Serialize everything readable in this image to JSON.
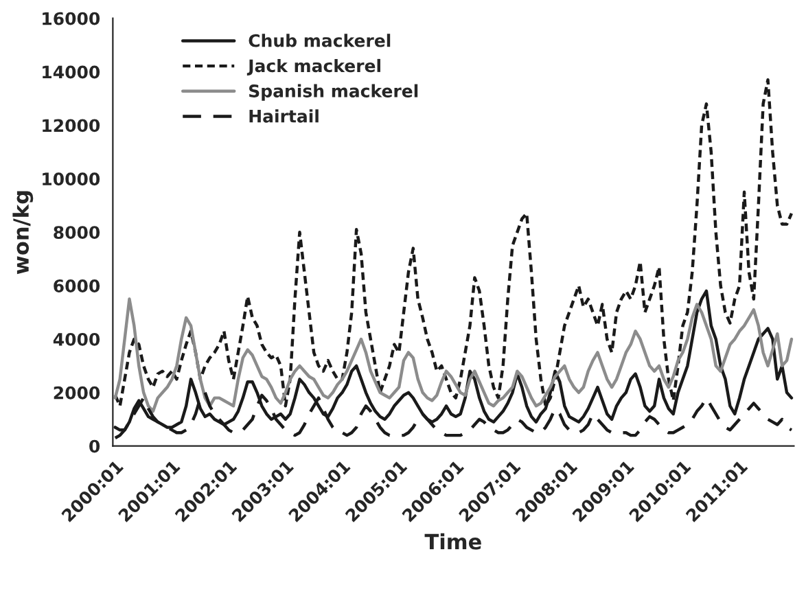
{
  "chart_data": {
    "type": "line",
    "xlabel": "Time",
    "ylabel": "won/kg",
    "ylim": [
      0,
      16000
    ],
    "yticks": [
      0,
      2000,
      4000,
      6000,
      8000,
      10000,
      12000,
      14000,
      16000
    ],
    "grid": false,
    "legend": "top left",
    "marker": "none",
    "categories": [
      "2000:01",
      null,
      null,
      null,
      null,
      null,
      null,
      null,
      null,
      null,
      null,
      null,
      "2001:01",
      null,
      null,
      null,
      null,
      null,
      null,
      null,
      null,
      null,
      null,
      null,
      "2002:01",
      null,
      null,
      null,
      null,
      null,
      null,
      null,
      null,
      null,
      null,
      null,
      "2003:01",
      null,
      null,
      null,
      null,
      null,
      null,
      null,
      null,
      null,
      null,
      null,
      "2004:01",
      null,
      null,
      null,
      null,
      null,
      null,
      null,
      null,
      null,
      null,
      null,
      "2005:01",
      null,
      null,
      null,
      null,
      null,
      null,
      null,
      null,
      null,
      null,
      null,
      "2006:01",
      null,
      null,
      null,
      null,
      null,
      null,
      null,
      null,
      null,
      null,
      null,
      "2007:01",
      null,
      null,
      null,
      null,
      null,
      null,
      null,
      null,
      null,
      null,
      null,
      "2008:01",
      null,
      null,
      null,
      null,
      null,
      null,
      null,
      null,
      null,
      null,
      null,
      "2009:01",
      null,
      null,
      null,
      null,
      null,
      null,
      null,
      null,
      null,
      null,
      null,
      "2010:01",
      null,
      null,
      null,
      null,
      null,
      null,
      null,
      null,
      null,
      null,
      null,
      "2011:01",
      null,
      null,
      null,
      null,
      null,
      null,
      null,
      null,
      null,
      null,
      null
    ],
    "series": [
      {
        "name": "Chub mackerel",
        "color": "#1a1a1a",
        "line_style": "solid",
        "values": [
          700,
          600,
          600,
          900,
          1400,
          1700,
          1400,
          1100,
          1000,
          900,
          800,
          700,
          700,
          800,
          900,
          1500,
          2500,
          2000,
          1400,
          1100,
          1200,
          1000,
          900,
          800,
          900,
          1000,
          1300,
          1800,
          2400,
          2400,
          2000,
          1500,
          1200,
          1000,
          1100,
          1200,
          1000,
          1200,
          1800,
          2500,
          2300,
          2000,
          1800,
          1500,
          1200,
          1100,
          1400,
          1800,
          2000,
          2300,
          2800,
          3000,
          2500,
          2000,
          1600,
          1300,
          1100,
          1000,
          1200,
          1500,
          1700,
          1900,
          2000,
          1800,
          1500,
          1200,
          1000,
          900,
          1000,
          1200,
          1500,
          1200,
          1100,
          1200,
          1800,
          2800,
          2500,
          1800,
          1300,
          1000,
          900,
          1100,
          1300,
          1600,
          2000,
          2700,
          2200,
          1500,
          1100,
          900,
          1200,
          1400,
          2000,
          2800,
          2400,
          1500,
          1100,
          1000,
          900,
          1100,
          1400,
          1800,
          2200,
          1700,
          1200,
          1000,
          1500,
          1800,
          2000,
          2500,
          2700,
          2200,
          1500,
          1300,
          1500,
          2500,
          1800,
          1400,
          1200,
          2000,
          2500,
          3000,
          4000,
          5000,
          5500,
          5800,
          4500,
          4000,
          3000,
          2500,
          1500,
          1200,
          1800,
          2500,
          3000,
          3500,
          4000,
          4200,
          4400,
          4000,
          2500,
          3000,
          2000,
          1800
        ]
      },
      {
        "name": "Jack mackerel",
        "color": "#1a1a1a",
        "line_style": "dotted",
        "values": [
          1900,
          1500,
          2500,
          3500,
          4000,
          3800,
          3000,
          2500,
          2200,
          2700,
          2800,
          2600,
          2800,
          2500,
          3200,
          3800,
          4300,
          3500,
          2500,
          3000,
          3300,
          3500,
          3800,
          4300,
          3200,
          2500,
          3500,
          4500,
          5600,
          4800,
          4500,
          3800,
          3500,
          3300,
          3400,
          3000,
          1500,
          2500,
          5500,
          8000,
          6500,
          5000,
          3500,
          3000,
          2800,
          3200,
          2800,
          2500,
          2500,
          3500,
          5000,
          8100,
          7200,
          5000,
          4000,
          3000,
          2000,
          2500,
          3000,
          3800,
          3500,
          5000,
          6500,
          7400,
          5500,
          4800,
          4000,
          3500,
          2800,
          3000,
          2500,
          2000,
          1800,
          2500,
          3500,
          4500,
          6300,
          5800,
          4500,
          3000,
          2200,
          1800,
          3000,
          5500,
          7500,
          8000,
          8500,
          8700,
          6500,
          4000,
          2500,
          1500,
          1800,
          2500,
          3500,
          4500,
          5000,
          5500,
          6000,
          5200,
          5500,
          5000,
          4500,
          5300,
          4000,
          3500,
          5000,
          5500,
          5800,
          5500,
          6000,
          6900,
          5000,
          5500,
          6000,
          6700,
          4000,
          2500,
          1700,
          3000,
          4500,
          5000,
          6500,
          9000,
          12000,
          12800,
          11000,
          8000,
          6000,
          5000,
          4600,
          5500,
          6000,
          9500,
          6500,
          5500,
          9000,
          12800,
          13700,
          11000,
          9000,
          8300,
          8300,
          8700
        ]
      },
      {
        "name": "Spanish mackerel",
        "color": "#8c8c8c",
        "line_style": "solid",
        "values": [
          1800,
          2500,
          4000,
          5500,
          4500,
          3000,
          2000,
          1500,
          1300,
          1800,
          2000,
          2200,
          2500,
          3000,
          4000,
          4800,
          4500,
          3500,
          2500,
          1800,
          1500,
          1800,
          1800,
          1700,
          1600,
          1500,
          2500,
          3300,
          3600,
          3400,
          3000,
          2600,
          2500,
          2200,
          1800,
          1600,
          2000,
          2500,
          2800,
          3000,
          2800,
          2600,
          2500,
          2200,
          1900,
          1800,
          2000,
          2300,
          2500,
          2800,
          3200,
          3600,
          4000,
          3500,
          2800,
          2400,
          2000,
          1900,
          1800,
          2000,
          2200,
          3200,
          3500,
          3300,
          2500,
          2000,
          1800,
          1700,
          1900,
          2400,
          2800,
          2600,
          2300,
          2000,
          1900,
          2500,
          2800,
          2400,
          2000,
          1600,
          1500,
          1700,
          1800,
          2000,
          2200,
          2800,
          2600,
          2200,
          1800,
          1500,
          1600,
          1900,
          2200,
          2600,
          2800,
          3000,
          2500,
          2200,
          2000,
          2200,
          2800,
          3200,
          3500,
          3000,
          2500,
          2200,
          2500,
          3000,
          3500,
          3800,
          4300,
          4000,
          3500,
          3000,
          2800,
          3000,
          2500,
          2200,
          2600,
          3200,
          3500,
          4000,
          4800,
          5300,
          5000,
          4500,
          4000,
          3000,
          2800,
          3300,
          3800,
          4000,
          4300,
          4500,
          4800,
          5100,
          4500,
          3500,
          3000,
          3600,
          4200,
          3000,
          3200,
          4000
        ]
      },
      {
        "name": "Hairtail",
        "color": "#1a1a1a",
        "line_style": "dashed",
        "values": [
          300,
          400,
          600,
          900,
          1200,
          1500,
          1800,
          1400,
          1100,
          900,
          800,
          700,
          600,
          500,
          500,
          600,
          800,
          1200,
          1800,
          2000,
          1500,
          1200,
          1000,
          800,
          600,
          500,
          500,
          600,
          800,
          1000,
          1500,
          1900,
          1700,
          1400,
          1000,
          800,
          600,
          500,
          400,
          500,
          800,
          1200,
          1500,
          1800,
          1400,
          1000,
          700,
          500,
          500,
          400,
          500,
          700,
          1200,
          1500,
          1300,
          1000,
          700,
          500,
          400,
          400,
          400,
          400,
          500,
          700,
          1000,
          1200,
          1000,
          800,
          600,
          500,
          400,
          400,
          400,
          400,
          500,
          600,
          800,
          1000,
          900,
          700,
          600,
          500,
          500,
          600,
          800,
          1000,
          900,
          700,
          600,
          500,
          500,
          700,
          1000,
          1400,
          1200,
          800,
          600,
          500,
          500,
          600,
          800,
          1200,
          1000,
          800,
          600,
          500,
          500,
          500,
          500,
          400,
          400,
          600,
          900,
          1100,
          1000,
          800,
          600,
          500,
          500,
          600,
          700,
          800,
          1000,
          1300,
          1500,
          1800,
          1500,
          1200,
          900,
          700,
          600,
          800,
          1000,
          1200,
          1400,
          1600,
          1400,
          1200,
          1000,
          900,
          800,
          1000,
          700,
          600
        ]
      }
    ]
  }
}
